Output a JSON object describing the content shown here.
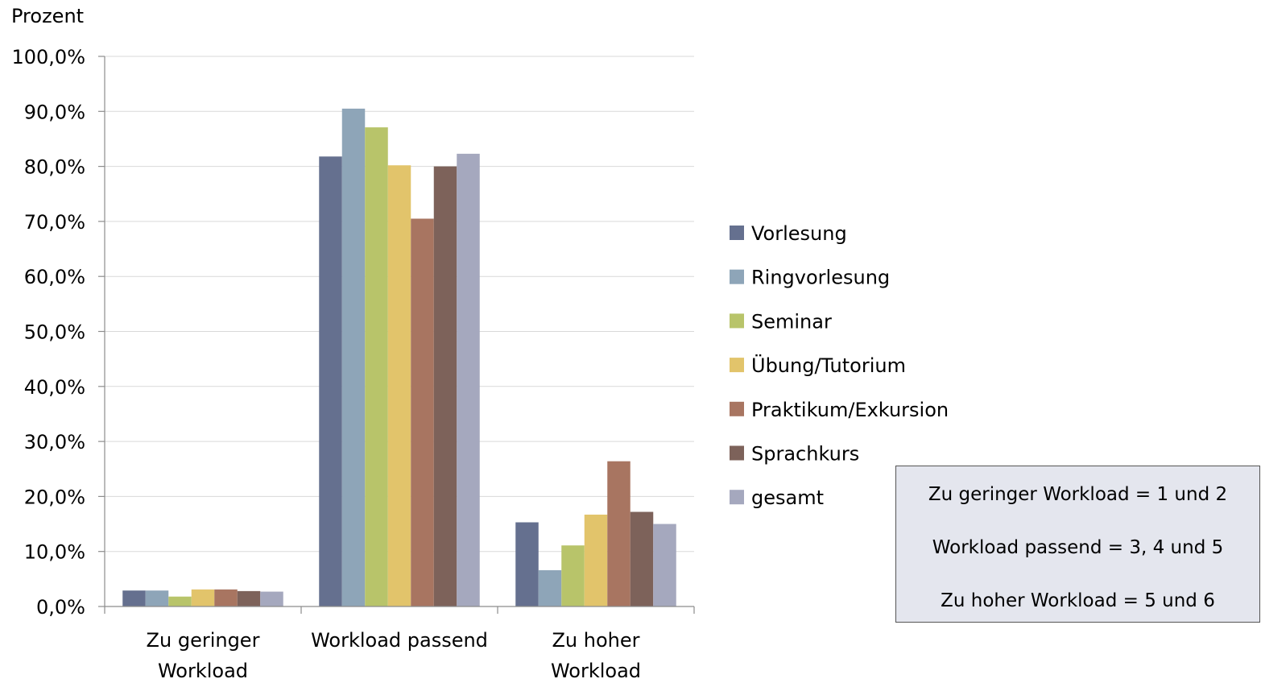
{
  "chart_data": {
    "type": "bar",
    "ylabel": "Prozent",
    "ylim": [
      0,
      100
    ],
    "ytick_step": 10,
    "ytick_labels": [
      "0,0%",
      "10,0%",
      "20,0%",
      "30,0%",
      "40,0%",
      "50,0%",
      "60,0%",
      "70,0%",
      "80,0%",
      "90,0%",
      "100,0%"
    ],
    "grid": true,
    "legend_position": "right",
    "categories": [
      [
        "Zu geringer",
        "Workload"
      ],
      [
        "Workload passend"
      ],
      [
        "Zu hoher",
        "Workload"
      ]
    ],
    "series": [
      {
        "name": "Vorlesung",
        "color": "#65708f",
        "values": [
          2.9,
          81.8,
          15.3
        ]
      },
      {
        "name": "Ringvorlesung",
        "color": "#8ea5b8",
        "values": [
          2.9,
          90.5,
          6.6
        ]
      },
      {
        "name": "Seminar",
        "color": "#b8c46a",
        "values": [
          1.8,
          87.1,
          11.1
        ]
      },
      {
        "name": "Übung/Tutorium",
        "color": "#e2c46b",
        "values": [
          3.1,
          80.2,
          16.7
        ]
      },
      {
        "name": "Praktikum/Exkursion",
        "color": "#a87561",
        "values": [
          3.1,
          70.5,
          26.4
        ]
      },
      {
        "name": "Sprachkurs",
        "color": "#7d625a",
        "values": [
          2.8,
          80.0,
          17.2
        ]
      },
      {
        "name": "gesamt",
        "color": "#a5a8be",
        "values": [
          2.7,
          82.3,
          15.0
        ]
      }
    ]
  },
  "note_box": {
    "lines": [
      "Zu geringer Workload = 1 und 2",
      "Workload passend = 3, 4 und 5",
      "Zu hoher Workload = 5 und 6"
    ]
  }
}
